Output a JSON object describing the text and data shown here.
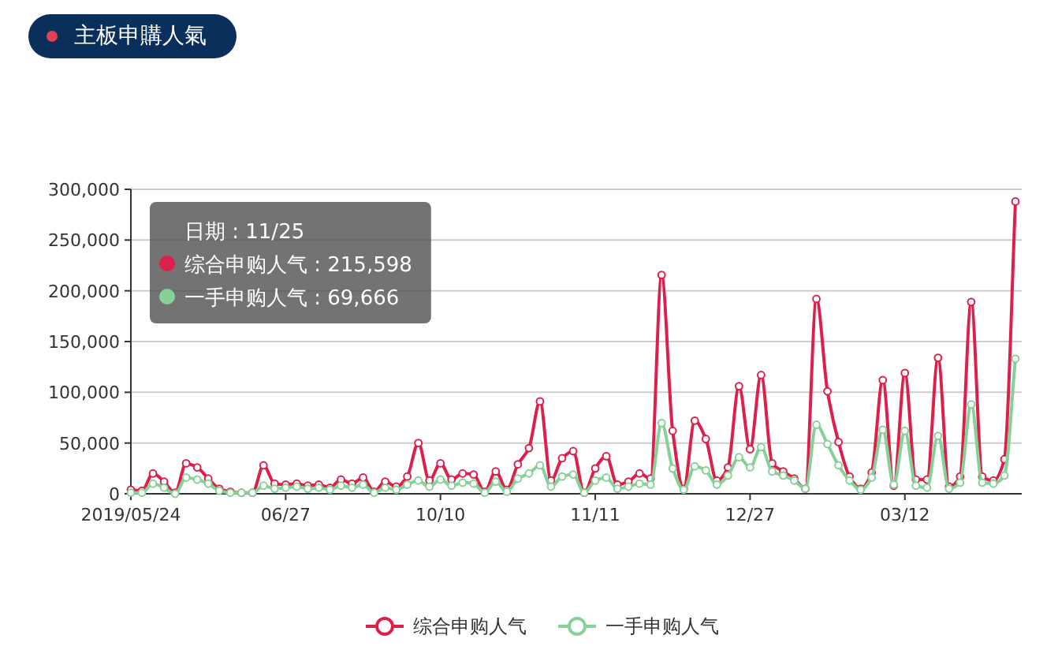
{
  "chart_data": {
    "type": "line",
    "title": "主板申購人氣",
    "categories": [
      "2019/05/24",
      null,
      null,
      null,
      null,
      null,
      null,
      null,
      null,
      null,
      null,
      null,
      null,
      null,
      "06/27",
      null,
      null,
      null,
      null,
      null,
      null,
      null,
      null,
      null,
      null,
      null,
      null,
      null,
      "10/10",
      null,
      null,
      null,
      null,
      null,
      null,
      null,
      null,
      null,
      null,
      null,
      null,
      null,
      "11/11",
      null,
      null,
      null,
      null,
      null,
      null,
      null,
      null,
      null,
      null,
      null,
      null,
      null,
      "12/27",
      null,
      null,
      null,
      null,
      null,
      null,
      null,
      null,
      null,
      null,
      null,
      null,
      null,
      "03/12",
      null,
      null,
      null,
      null,
      null,
      null,
      null,
      null,
      null,
      null
    ],
    "series": [
      {
        "name": "综合申购人气",
        "color": "#dc1f4b",
        "values": [
          4000,
          3000,
          20000,
          12000,
          1000,
          30000,
          26000,
          15000,
          5000,
          2000,
          1000,
          1000,
          28000,
          10000,
          9000,
          10000,
          8000,
          9000,
          6000,
          14000,
          10000,
          16000,
          2000,
          12000,
          7000,
          17000,
          50000,
          13000,
          30000,
          14000,
          20000,
          19000,
          2000,
          22000,
          4000,
          29000,
          45000,
          91000,
          13000,
          35000,
          42000,
          1000,
          25000,
          37000,
          9000,
          12000,
          20000,
          15000,
          215598,
          62000,
          5000,
          72000,
          54000,
          13000,
          26000,
          106000,
          44000,
          117000,
          30000,
          22000,
          15000,
          5000,
          192000,
          101000,
          51000,
          17000,
          5000,
          21000,
          112000,
          8000,
          119000,
          14000,
          14000,
          134000,
          7000,
          17000,
          189000,
          17000,
          13000,
          34000,
          288000
        ]
      },
      {
        "name": "一手申购人气",
        "color": "#86d197",
        "values": [
          1000,
          1000,
          10000,
          6000,
          0,
          16000,
          14000,
          10000,
          3000,
          1000,
          1000,
          1000,
          8000,
          5000,
          6000,
          7000,
          5000,
          6000,
          4000,
          8000,
          6000,
          9000,
          1000,
          6000,
          4000,
          9000,
          13000,
          7000,
          14000,
          8000,
          11000,
          10000,
          1000,
          12000,
          2000,
          15000,
          20000,
          28000,
          7000,
          17000,
          19000,
          1000,
          13000,
          16000,
          5000,
          7000,
          10000,
          9000,
          69666,
          25000,
          4000,
          27000,
          23000,
          9000,
          18000,
          36000,
          26000,
          46000,
          22000,
          18000,
          13000,
          5000,
          68000,
          49000,
          28000,
          13000,
          4000,
          16000,
          63000,
          9000,
          62000,
          8000,
          6000,
          57000,
          5000,
          11000,
          88000,
          11000,
          10000,
          18000,
          133000
        ]
      }
    ],
    "ylim": [
      0,
      300000
    ],
    "yticks": [
      0,
      {
        "value": 50000,
        "label": "50,000"
      },
      {
        "value": 100000,
        "label": "100,000"
      },
      {
        "value": 150000,
        "label": "150,000"
      },
      {
        "value": 200000,
        "label": "200,000"
      },
      {
        "value": 250000,
        "label": "250,000"
      },
      {
        "value": 300000,
        "label": "300,000"
      }
    ],
    "grid": "y",
    "legend": "bottom",
    "marker": "circle",
    "line_style": "solid",
    "annotations": [
      "日期 : 11/25",
      "综合申购人气 : 215,598",
      "一手申购人气 : 69,666"
    ]
  }
}
